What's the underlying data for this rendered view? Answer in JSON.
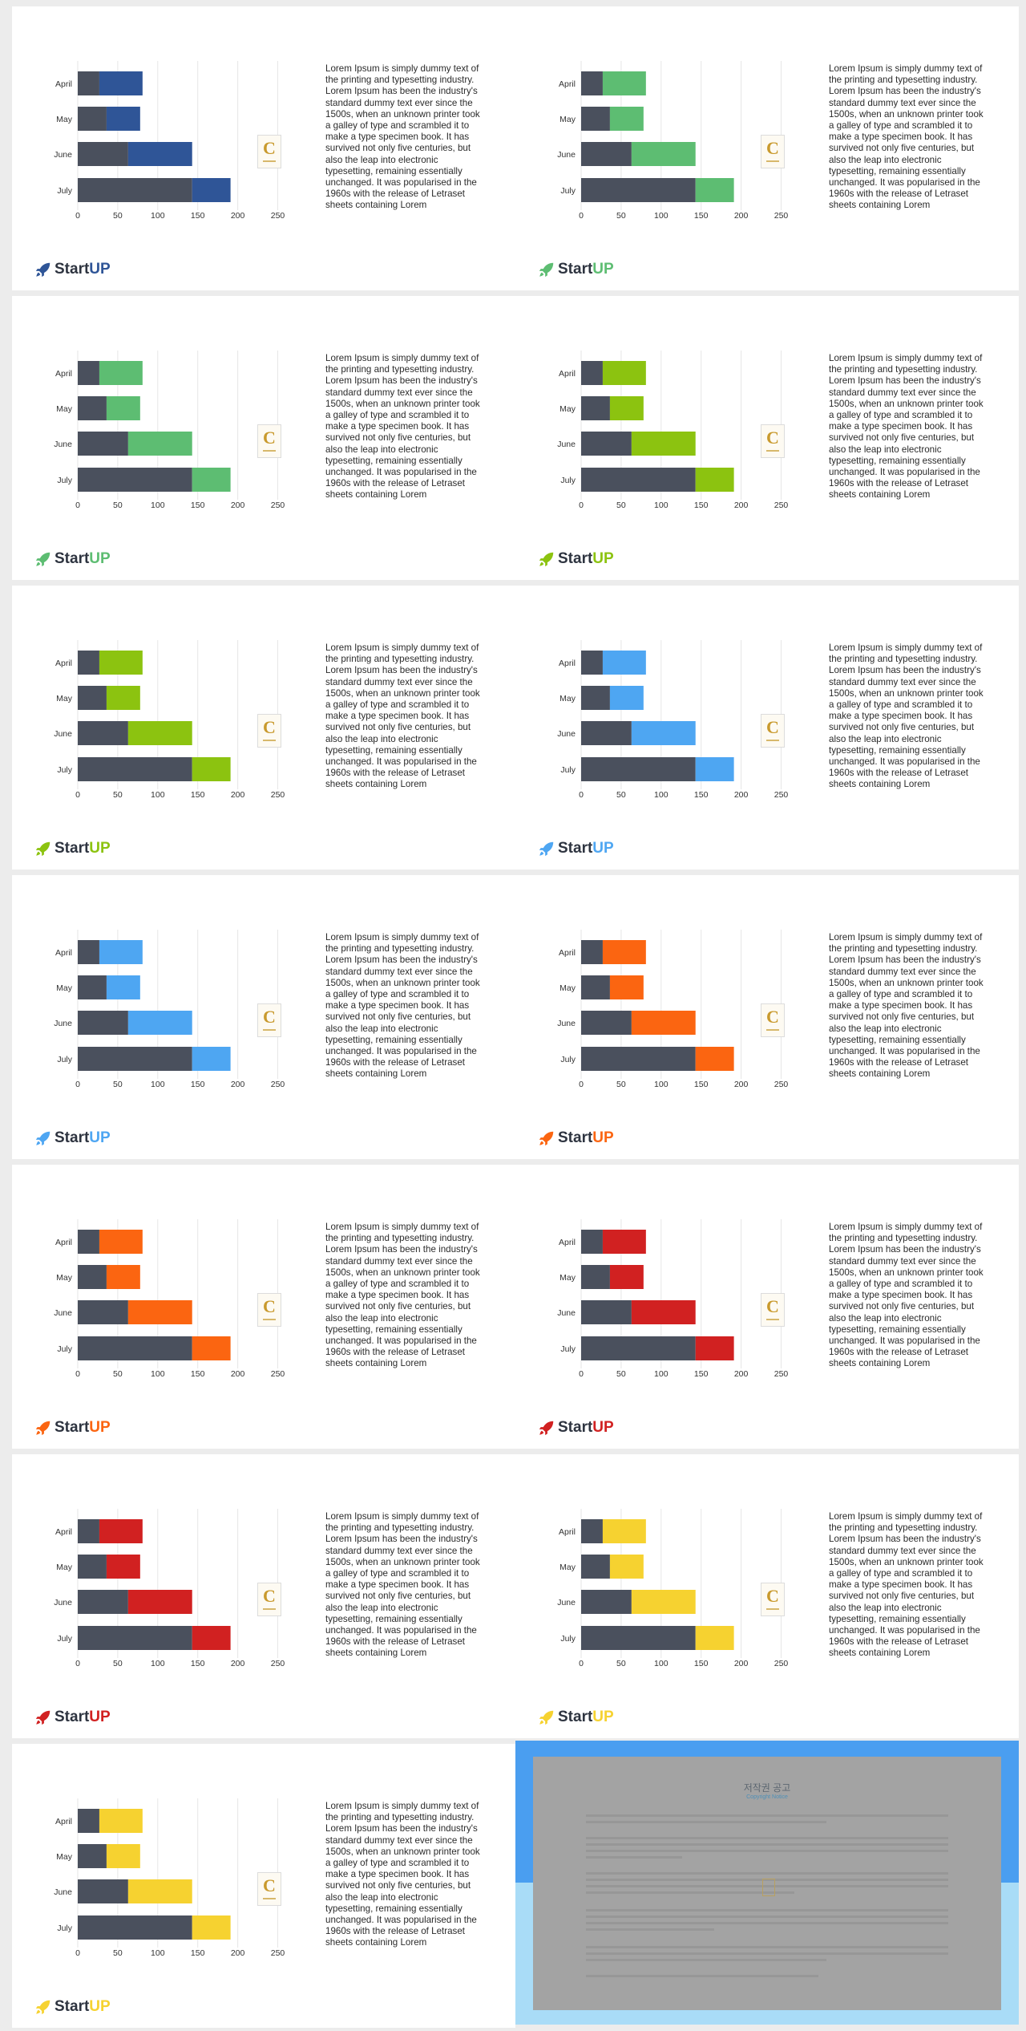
{
  "chart_data": {
    "type": "bar",
    "orientation": "horizontal",
    "stacked": true,
    "categories": [
      "April",
      "May",
      "June",
      "July"
    ],
    "series": [
      {
        "values": [
          27,
          36,
          63,
          143
        ]
      },
      {
        "values": [
          54,
          42,
          80,
          48
        ]
      }
    ],
    "xticks": [
      0,
      50,
      100,
      150,
      200,
      250
    ],
    "xlim": [
      0,
      250
    ],
    "grid": true
  },
  "base_color": "#4a505d",
  "body_text": "Lorem Ipsum is simply dummy text of the printing and typesetting industry. Lorem Ipsum has been the industry's standard dummy text ever since the 1500s, when an unknown printer took a galley of type and scrambled it to make a type specimen book. It has survived not only five centuries, but also the leap into electronic typesetting, remaining essentially unchanged. It was popularised in the 1960s with the release of Letraset sheets containing Lorem",
  "logo": {
    "start": "Start",
    "up": "UP",
    "icon": "rocket-icon"
  },
  "watermark_icon": "c-brand-mark",
  "slides": [
    {
      "accent": "#2f5597"
    },
    {
      "accent": "#5dbd72"
    },
    {
      "accent": "#5dbd72"
    },
    {
      "accent": "#8cc310"
    },
    {
      "accent": "#8cc310"
    },
    {
      "accent": "#4ea6f2"
    },
    {
      "accent": "#4ea6f2"
    },
    {
      "accent": "#fb6511"
    },
    {
      "accent": "#fb6511"
    },
    {
      "accent": "#d12121"
    },
    {
      "accent": "#d12121"
    },
    {
      "accent": "#f6d230"
    },
    {
      "accent": "#f6d230"
    }
  ],
  "copyright": {
    "title": "저작권 공고",
    "subtitle": "Copyright Notice",
    "colors": {
      "top": "#4a9ef0",
      "bottom": "#a9dcf7",
      "panel": "#a3a3a3"
    }
  }
}
